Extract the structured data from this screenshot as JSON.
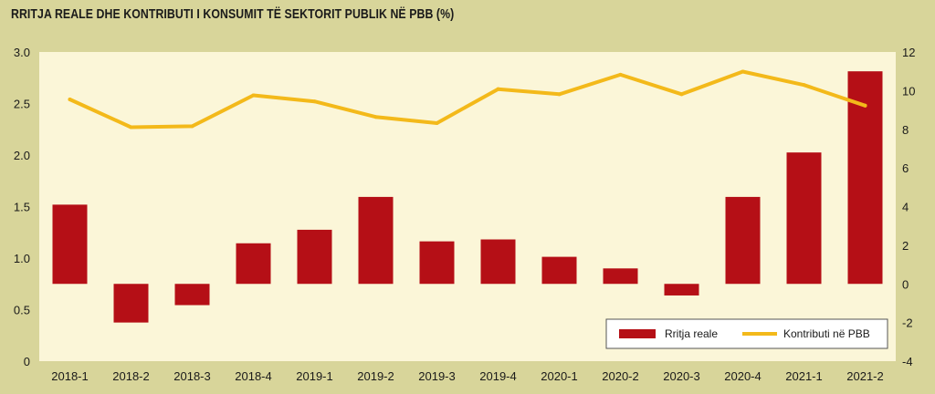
{
  "chart_data": {
    "type": "bar+line",
    "title": "RRITJA REALE DHE KONTRIBUTI I KONSUMIT TË SEKTORIT PUBLIK NË PBB (%)",
    "categories": [
      "2018-1",
      "2018-2",
      "2018-3",
      "2018-4",
      "2019-1",
      "2019-2",
      "2019-3",
      "2019-4",
      "2020-1",
      "2020-2",
      "2020-3",
      "2020-4",
      "2021-1",
      "2021-2"
    ],
    "series": [
      {
        "name": "Rritja reale",
        "type": "bar",
        "axis": "right",
        "color": "#b50f16",
        "values": [
          4.1,
          -2.0,
          -1.1,
          2.1,
          2.8,
          4.5,
          2.2,
          2.3,
          1.4,
          0.8,
          -0.6,
          4.5,
          6.8,
          11.0
        ]
      },
      {
        "name": "Kontributi në PBB",
        "type": "line",
        "axis": "left",
        "color": "#f3b91a",
        "values": [
          2.54,
          2.27,
          2.28,
          2.58,
          2.52,
          2.37,
          2.31,
          2.64,
          2.59,
          2.78,
          2.59,
          2.81,
          2.68,
          2.48
        ]
      }
    ],
    "y_left": {
      "min": 0,
      "max": 3.0,
      "ticks": [
        "0",
        "0.5",
        "1.0",
        "1.5",
        "2.0",
        "2.5",
        "3.0"
      ]
    },
    "y_right": {
      "min": -4,
      "max": 12,
      "ticks": [
        "-4",
        "-2",
        "0",
        "2",
        "4",
        "6",
        "8",
        "10",
        "12"
      ]
    },
    "grid": false,
    "legend_position": "bottom-right",
    "plot_background": "#fbf6d8",
    "page_background": "#d8d59a"
  }
}
